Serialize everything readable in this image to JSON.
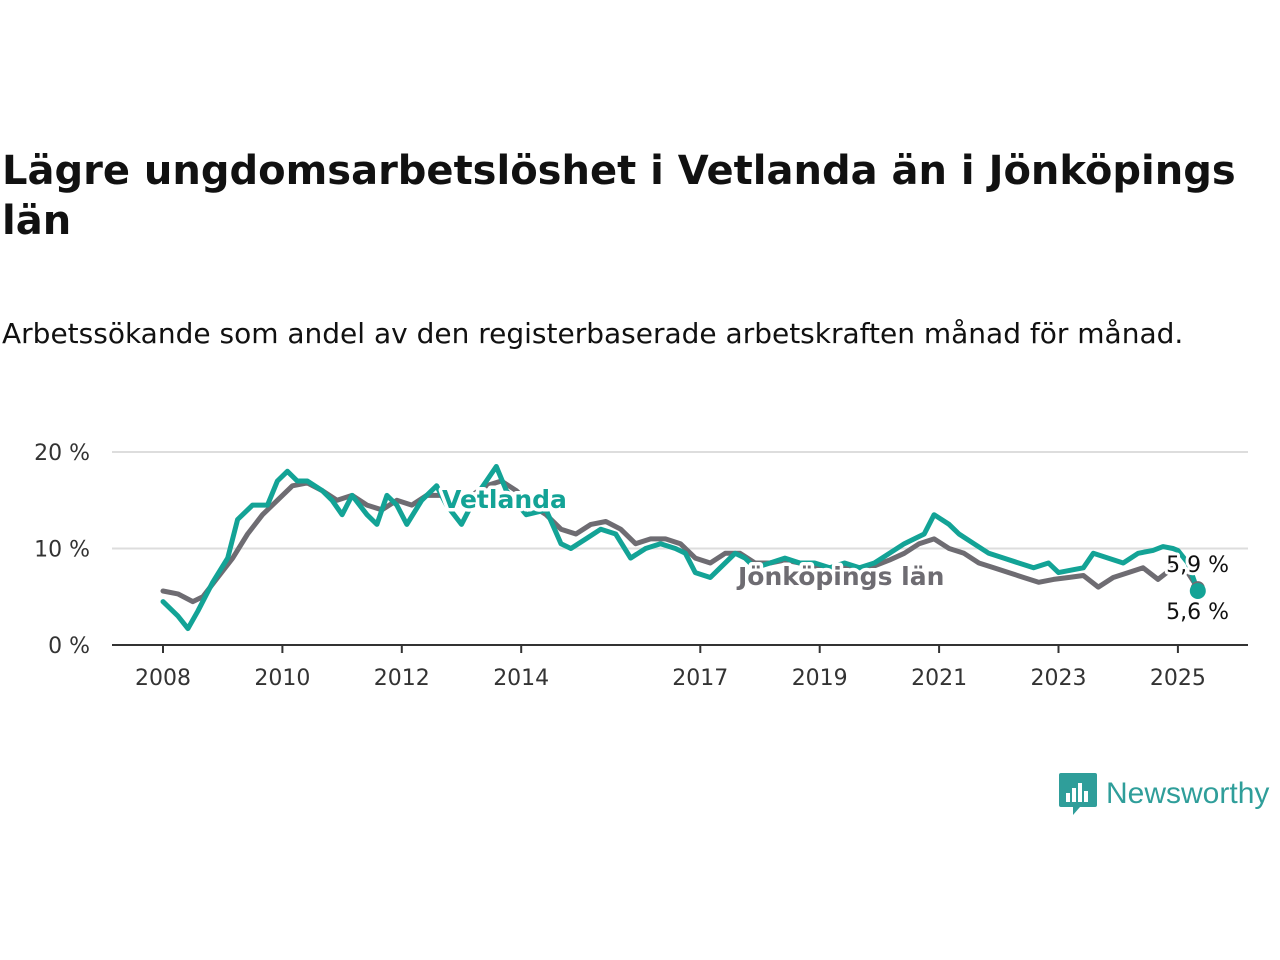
{
  "header": {
    "title": "Lägre ungdomsarbetslöshet i Vetlanda än i Jönköpings län",
    "subtitle": "Arbetssökande som andel av den registerbaserade arbetskraften månad för månad."
  },
  "brand": {
    "name": "Newsworthy",
    "icon": "newsworthy-logo-icon"
  },
  "colors": {
    "vetlanda": "#13a396",
    "lan": "#6e6c72",
    "grid": "#dddddd",
    "axis": "#333333"
  },
  "chart_data": {
    "type": "line",
    "title": "Lägre ungdomsarbetslöshet i Vetlanda än i Jönköpings län",
    "xlabel": "",
    "ylabel": "",
    "x_ticks": [
      "2008",
      "2010",
      "2012",
      "2014",
      "2017",
      "2019",
      "2021",
      "2023",
      "2025"
    ],
    "y_ticks": [
      "0 %",
      "10 %",
      "20 %"
    ],
    "ylim": [
      0,
      20
    ],
    "x_range": [
      "2008-01",
      "2025-05"
    ],
    "grid": true,
    "series": [
      {
        "name": "Vetlanda",
        "color": "#13a396",
        "end_value": "5,6 %",
        "points": [
          [
            "2008-01",
            4.5
          ],
          [
            "2008-04",
            3
          ],
          [
            "2008-06",
            1.7
          ],
          [
            "2008-08",
            3.5
          ],
          [
            "2008-11",
            6.5
          ],
          [
            "2009-02",
            9
          ],
          [
            "2009-04",
            13
          ],
          [
            "2009-07",
            14.5
          ],
          [
            "2009-10",
            14.5
          ],
          [
            "2009-12",
            17
          ],
          [
            "2010-02",
            18
          ],
          [
            "2010-04",
            17
          ],
          [
            "2010-06",
            17
          ],
          [
            "2010-09",
            16
          ],
          [
            "2010-11",
            15
          ],
          [
            "2011-01",
            13.5
          ],
          [
            "2011-03",
            15.5
          ],
          [
            "2011-06",
            13.5
          ],
          [
            "2011-08",
            12.5
          ],
          [
            "2011-10",
            15.5
          ],
          [
            "2011-12",
            14.5
          ],
          [
            "2012-02",
            12.5
          ],
          [
            "2012-05",
            15
          ],
          [
            "2012-08",
            16.5
          ],
          [
            "2012-10",
            14.5
          ],
          [
            "2013-01",
            12.5
          ],
          [
            "2013-04",
            15.5
          ],
          [
            "2013-06",
            17
          ],
          [
            "2013-08",
            18.5
          ],
          [
            "2013-10",
            16
          ],
          [
            "2014-02",
            13.5
          ],
          [
            "2014-06",
            14
          ],
          [
            "2014-09",
            10.5
          ],
          [
            "2014-11",
            10
          ],
          [
            "2015-02",
            11
          ],
          [
            "2015-05",
            12
          ],
          [
            "2015-08",
            11.5
          ],
          [
            "2015-11",
            9
          ],
          [
            "2016-02",
            10
          ],
          [
            "2016-05",
            10.5
          ],
          [
            "2016-08",
            10
          ],
          [
            "2016-10",
            9.5
          ],
          [
            "2016-12",
            7.5
          ],
          [
            "2017-03",
            7
          ],
          [
            "2017-05",
            8
          ],
          [
            "2017-08",
            9.5
          ],
          [
            "2017-10",
            9
          ],
          [
            "2017-12",
            8
          ],
          [
            "2018-03",
            8.5
          ],
          [
            "2018-06",
            9
          ],
          [
            "2018-09",
            8.5
          ],
          [
            "2018-12",
            8.5
          ],
          [
            "2019-03",
            8
          ],
          [
            "2019-06",
            8.5
          ],
          [
            "2019-09",
            8
          ],
          [
            "2019-12",
            8.5
          ],
          [
            "2020-03",
            9.5
          ],
          [
            "2020-06",
            10.5
          ],
          [
            "2020-08",
            11
          ],
          [
            "2020-10",
            11.5
          ],
          [
            "2020-12",
            13.5
          ],
          [
            "2021-03",
            12.5
          ],
          [
            "2021-05",
            11.5
          ],
          [
            "2021-08",
            10.5
          ],
          [
            "2021-11",
            9.5
          ],
          [
            "2022-02",
            9
          ],
          [
            "2022-05",
            8.5
          ],
          [
            "2022-08",
            8
          ],
          [
            "2022-11",
            8.5
          ],
          [
            "2023-01",
            7.5
          ],
          [
            "2023-04",
            7.8
          ],
          [
            "2023-06",
            8
          ],
          [
            "2023-08",
            9.5
          ],
          [
            "2023-11",
            9
          ],
          [
            "2024-02",
            8.5
          ],
          [
            "2024-05",
            9.5
          ],
          [
            "2024-08",
            9.8
          ],
          [
            "2024-10",
            10.2
          ],
          [
            "2024-12",
            10
          ],
          [
            "2025-01",
            9.8
          ],
          [
            "2025-03",
            8.5
          ],
          [
            "2025-05",
            5.6
          ]
        ]
      },
      {
        "name": "Jönköpings län",
        "color": "#6e6c72",
        "end_value": "5,9 %",
        "points": [
          [
            "2008-01",
            5.6
          ],
          [
            "2008-04",
            5.3
          ],
          [
            "2008-07",
            4.5
          ],
          [
            "2008-09",
            5
          ],
          [
            "2008-12",
            7
          ],
          [
            "2009-03",
            9
          ],
          [
            "2009-06",
            11.5
          ],
          [
            "2009-09",
            13.5
          ],
          [
            "2009-12",
            15
          ],
          [
            "2010-03",
            16.5
          ],
          [
            "2010-06",
            16.8
          ],
          [
            "2010-09",
            16
          ],
          [
            "2010-12",
            15
          ],
          [
            "2011-03",
            15.5
          ],
          [
            "2011-06",
            14.5
          ],
          [
            "2011-09",
            14
          ],
          [
            "2011-12",
            15
          ],
          [
            "2012-03",
            14.5
          ],
          [
            "2012-06",
            15.5
          ],
          [
            "2012-09",
            15.5
          ],
          [
            "2012-12",
            14.5
          ],
          [
            "2013-03",
            15.5
          ],
          [
            "2013-06",
            16.5
          ],
          [
            "2013-09",
            17
          ],
          [
            "2013-12",
            16
          ],
          [
            "2014-03",
            14.5
          ],
          [
            "2014-06",
            13.5
          ],
          [
            "2014-09",
            12
          ],
          [
            "2014-12",
            11.5
          ],
          [
            "2015-03",
            12.5
          ],
          [
            "2015-06",
            12.8
          ],
          [
            "2015-09",
            12
          ],
          [
            "2015-12",
            10.5
          ],
          [
            "2016-03",
            11
          ],
          [
            "2016-06",
            11
          ],
          [
            "2016-09",
            10.5
          ],
          [
            "2016-12",
            9
          ],
          [
            "2017-03",
            8.5
          ],
          [
            "2017-06",
            9.5
          ],
          [
            "2017-09",
            9.5
          ],
          [
            "2017-12",
            8.5
          ],
          [
            "2018-03",
            8.5
          ],
          [
            "2018-06",
            8.8
          ],
          [
            "2018-09",
            8.5
          ],
          [
            "2018-12",
            8.2
          ],
          [
            "2019-03",
            8
          ],
          [
            "2019-06",
            8.2
          ],
          [
            "2019-09",
            8
          ],
          [
            "2019-12",
            8.2
          ],
          [
            "2020-03",
            8.8
          ],
          [
            "2020-06",
            9.5
          ],
          [
            "2020-09",
            10.5
          ],
          [
            "2020-12",
            11
          ],
          [
            "2021-03",
            10
          ],
          [
            "2021-06",
            9.5
          ],
          [
            "2021-09",
            8.5
          ],
          [
            "2021-12",
            8
          ],
          [
            "2022-03",
            7.5
          ],
          [
            "2022-06",
            7
          ],
          [
            "2022-09",
            6.5
          ],
          [
            "2022-12",
            6.8
          ],
          [
            "2023-03",
            7
          ],
          [
            "2023-06",
            7.2
          ],
          [
            "2023-09",
            6
          ],
          [
            "2023-12",
            7
          ],
          [
            "2024-03",
            7.5
          ],
          [
            "2024-06",
            8
          ],
          [
            "2024-09",
            6.8
          ],
          [
            "2024-12",
            8
          ],
          [
            "2025-03",
            7.5
          ],
          [
            "2025-05",
            5.9
          ]
        ]
      }
    ]
  }
}
